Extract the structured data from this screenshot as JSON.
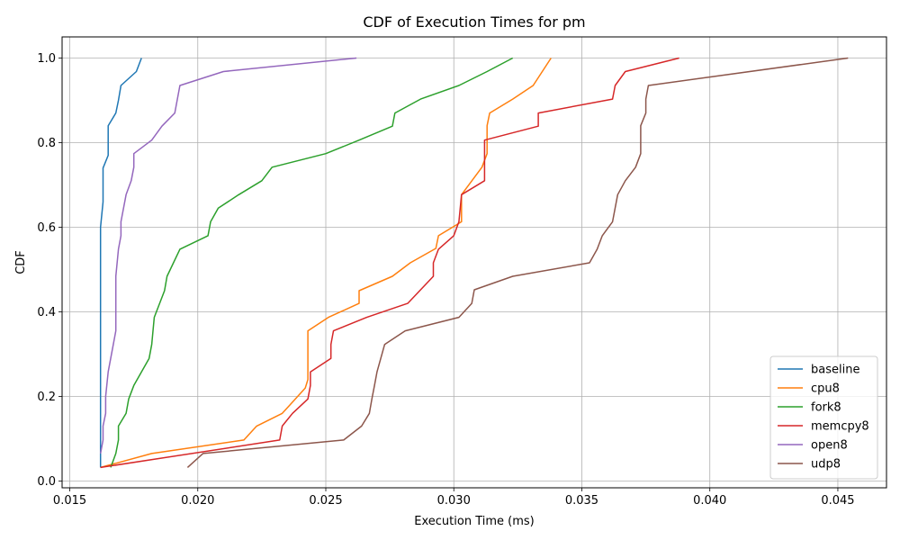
{
  "chart_data": {
    "type": "line",
    "title": "CDF of Execution Times for pm",
    "xlabel": "Execution Time (ms)",
    "ylabel": "CDF",
    "xlim": [
      0.0147,
      0.0469
    ],
    "ylim": [
      -0.016,
      1.05
    ],
    "xticks": [
      0.015,
      0.02,
      0.025,
      0.03,
      0.035,
      0.04,
      0.045
    ],
    "xtick_labels": [
      "0.015",
      "0.020",
      "0.025",
      "0.030",
      "0.035",
      "0.040",
      "0.045"
    ],
    "yticks": [
      0.0,
      0.2,
      0.4,
      0.6,
      0.8,
      1.0
    ],
    "ytick_labels": [
      "0.0",
      "0.2",
      "0.4",
      "0.6",
      "0.8",
      "1.0"
    ],
    "grid": true,
    "legend_position": "bottom-right",
    "series": [
      {
        "name": "baseline",
        "color": "#1f77b4",
        "points": [
          [
            0.0162,
            0.032
          ],
          [
            0.0162,
            0.2
          ],
          [
            0.0162,
            0.55
          ],
          [
            0.0162,
            0.6
          ],
          [
            0.0163,
            0.66
          ],
          [
            0.0163,
            0.74
          ],
          [
            0.0165,
            0.77
          ],
          [
            0.0165,
            0.84
          ],
          [
            0.0168,
            0.87
          ],
          [
            0.0169,
            0.9
          ],
          [
            0.017,
            0.935
          ],
          [
            0.0176,
            0.968
          ],
          [
            0.0178,
            1.0
          ]
        ]
      },
      {
        "name": "cpu8",
        "color": "#ff7f0e",
        "points": [
          [
            0.0162,
            0.032
          ],
          [
            0.0182,
            0.065
          ],
          [
            0.0218,
            0.097
          ],
          [
            0.0223,
            0.13
          ],
          [
            0.0233,
            0.16
          ],
          [
            0.0236,
            0.18
          ],
          [
            0.0242,
            0.22
          ],
          [
            0.0243,
            0.24
          ],
          [
            0.0243,
            0.355
          ],
          [
            0.0251,
            0.387
          ],
          [
            0.0263,
            0.42
          ],
          [
            0.0263,
            0.45
          ],
          [
            0.0276,
            0.484
          ],
          [
            0.0283,
            0.516
          ],
          [
            0.0293,
            0.55
          ],
          [
            0.0294,
            0.58
          ],
          [
            0.0303,
            0.613
          ],
          [
            0.0303,
            0.64
          ],
          [
            0.0303,
            0.677
          ],
          [
            0.0311,
            0.742
          ],
          [
            0.0313,
            0.774
          ],
          [
            0.0313,
            0.806
          ],
          [
            0.0313,
            0.84
          ],
          [
            0.0314,
            0.87
          ],
          [
            0.0323,
            0.903
          ],
          [
            0.0331,
            0.935
          ],
          [
            0.0338,
            1.0
          ]
        ]
      },
      {
        "name": "fork8",
        "color": "#2ca02c",
        "points": [
          [
            0.0166,
            0.032
          ],
          [
            0.0168,
            0.065
          ],
          [
            0.0169,
            0.097
          ],
          [
            0.0169,
            0.13
          ],
          [
            0.0172,
            0.16
          ],
          [
            0.0173,
            0.194
          ],
          [
            0.0175,
            0.226
          ],
          [
            0.0178,
            0.258
          ],
          [
            0.0181,
            0.29
          ],
          [
            0.0182,
            0.323
          ],
          [
            0.0183,
            0.387
          ],
          [
            0.0187,
            0.45
          ],
          [
            0.0188,
            0.484
          ],
          [
            0.0193,
            0.548
          ],
          [
            0.0204,
            0.58
          ],
          [
            0.0205,
            0.613
          ],
          [
            0.0208,
            0.645
          ],
          [
            0.0216,
            0.677
          ],
          [
            0.0225,
            0.71
          ],
          [
            0.0229,
            0.742
          ],
          [
            0.025,
            0.774
          ],
          [
            0.0263,
            0.806
          ],
          [
            0.0276,
            0.839
          ],
          [
            0.0277,
            0.87
          ],
          [
            0.0287,
            0.903
          ],
          [
            0.0302,
            0.935
          ],
          [
            0.0313,
            0.968
          ],
          [
            0.0323,
            1.0
          ]
        ]
      },
      {
        "name": "memcpy8",
        "color": "#d62728",
        "points": [
          [
            0.0162,
            0.032
          ],
          [
            0.0232,
            0.097
          ],
          [
            0.0233,
            0.13
          ],
          [
            0.0237,
            0.16
          ],
          [
            0.0243,
            0.194
          ],
          [
            0.0244,
            0.226
          ],
          [
            0.0244,
            0.258
          ],
          [
            0.0252,
            0.29
          ],
          [
            0.0252,
            0.323
          ],
          [
            0.0253,
            0.355
          ],
          [
            0.0266,
            0.387
          ],
          [
            0.0282,
            0.42
          ],
          [
            0.0292,
            0.484
          ],
          [
            0.0292,
            0.516
          ],
          [
            0.0294,
            0.548
          ],
          [
            0.03,
            0.58
          ],
          [
            0.0302,
            0.613
          ],
          [
            0.0303,
            0.677
          ],
          [
            0.0312,
            0.71
          ],
          [
            0.0312,
            0.742
          ],
          [
            0.0312,
            0.806
          ],
          [
            0.0333,
            0.839
          ],
          [
            0.0333,
            0.87
          ],
          [
            0.0362,
            0.903
          ],
          [
            0.0363,
            0.935
          ],
          [
            0.0367,
            0.968
          ],
          [
            0.0388,
            1.0
          ]
        ]
      },
      {
        "name": "open8",
        "color": "#9467bd",
        "points": [
          [
            0.0162,
            0.065
          ],
          [
            0.0163,
            0.097
          ],
          [
            0.0163,
            0.13
          ],
          [
            0.0164,
            0.16
          ],
          [
            0.0164,
            0.2
          ],
          [
            0.0165,
            0.258
          ],
          [
            0.0166,
            0.29
          ],
          [
            0.0167,
            0.323
          ],
          [
            0.0168,
            0.355
          ],
          [
            0.0168,
            0.45
          ],
          [
            0.0168,
            0.484
          ],
          [
            0.0169,
            0.548
          ],
          [
            0.017,
            0.58
          ],
          [
            0.017,
            0.613
          ],
          [
            0.0172,
            0.677
          ],
          [
            0.0174,
            0.71
          ],
          [
            0.0175,
            0.742
          ],
          [
            0.0175,
            0.774
          ],
          [
            0.0182,
            0.806
          ],
          [
            0.0186,
            0.839
          ],
          [
            0.0191,
            0.87
          ],
          [
            0.0193,
            0.935
          ],
          [
            0.021,
            0.968
          ],
          [
            0.0262,
            1.0
          ]
        ]
      },
      {
        "name": "udp8",
        "color": "#8c564b",
        "points": [
          [
            0.0196,
            0.032
          ],
          [
            0.0202,
            0.065
          ],
          [
            0.0257,
            0.097
          ],
          [
            0.0264,
            0.13
          ],
          [
            0.0267,
            0.16
          ],
          [
            0.0268,
            0.194
          ],
          [
            0.0269,
            0.226
          ],
          [
            0.027,
            0.258
          ],
          [
            0.0273,
            0.323
          ],
          [
            0.0281,
            0.355
          ],
          [
            0.0302,
            0.387
          ],
          [
            0.0307,
            0.42
          ],
          [
            0.0308,
            0.452
          ],
          [
            0.0323,
            0.484
          ],
          [
            0.0353,
            0.516
          ],
          [
            0.0356,
            0.548
          ],
          [
            0.0358,
            0.58
          ],
          [
            0.0362,
            0.613
          ],
          [
            0.0364,
            0.677
          ],
          [
            0.0367,
            0.71
          ],
          [
            0.0371,
            0.742
          ],
          [
            0.0373,
            0.774
          ],
          [
            0.0373,
            0.84
          ],
          [
            0.0375,
            0.87
          ],
          [
            0.0375,
            0.903
          ],
          [
            0.0376,
            0.935
          ],
          [
            0.0454,
            1.0
          ]
        ]
      }
    ]
  }
}
